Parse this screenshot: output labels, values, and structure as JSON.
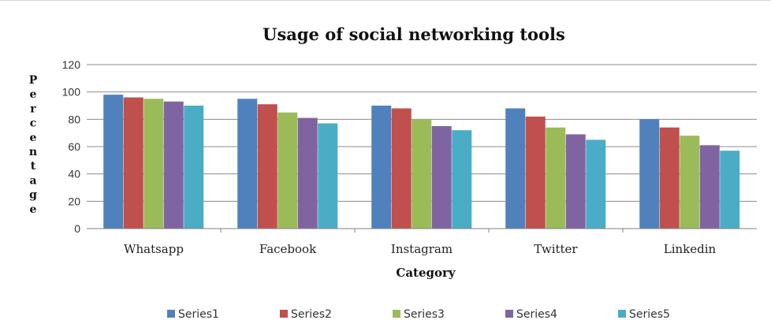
{
  "chart_data": {
    "type": "bar",
    "title": "Usage of social networking tools",
    "xlabel": "Category",
    "ylabel": "Percentage",
    "categories": [
      "Whatsapp",
      "Facebook",
      "Instagram",
      "Twitter",
      "Linkedin"
    ],
    "ylim": [
      0,
      120
    ],
    "yticks": [
      0,
      20,
      40,
      60,
      80,
      100,
      120
    ],
    "grid": true,
    "legend_position": "bottom",
    "series": [
      {
        "name": "Series1",
        "color": "#4F81BD",
        "values": [
          98,
          95,
          90,
          88,
          80
        ]
      },
      {
        "name": "Series2",
        "color": "#C0504D",
        "values": [
          96,
          91,
          88,
          82,
          74
        ]
      },
      {
        "name": "Series3",
        "color": "#9BBB59",
        "values": [
          95,
          85,
          80,
          74,
          68
        ]
      },
      {
        "name": "Series4",
        "color": "#8064A2",
        "values": [
          93,
          81,
          75,
          69,
          61
        ]
      },
      {
        "name": "Series5",
        "color": "#4BACC6",
        "values": [
          90,
          77,
          72,
          65,
          57
        ]
      }
    ]
  }
}
